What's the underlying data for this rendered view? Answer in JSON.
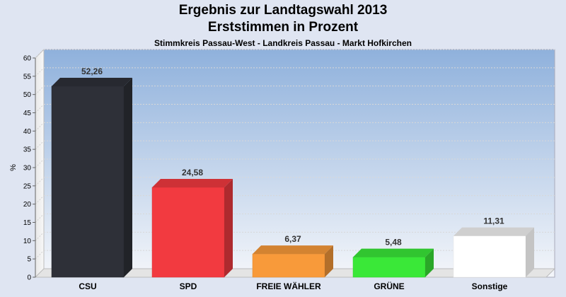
{
  "chart_data": {
    "type": "bar",
    "title": "Ergebnis zur Landtagswahl 2013",
    "title2": "Erststimmen in Prozent",
    "subtitle": "Stimmkreis Passau-West - Landkreis Passau - Markt Hofkirchen",
    "ylabel": "%",
    "xlabel": "",
    "ylim": [
      0,
      60
    ],
    "ytick_step": 5,
    "grid": true,
    "categories": [
      "CSU",
      "SPD",
      "FREIE WÄHLER",
      "GRÜNE",
      "Sonstige"
    ],
    "values": [
      52.26,
      24.58,
      6.37,
      5.48,
      11.31
    ],
    "value_labels": [
      "52,26",
      "24,58",
      "6,37",
      "5,48",
      "11,31"
    ],
    "colors": [
      "#2e3038",
      "#f23a40",
      "#f89a3a",
      "#3ae838",
      "#ffffff"
    ]
  }
}
